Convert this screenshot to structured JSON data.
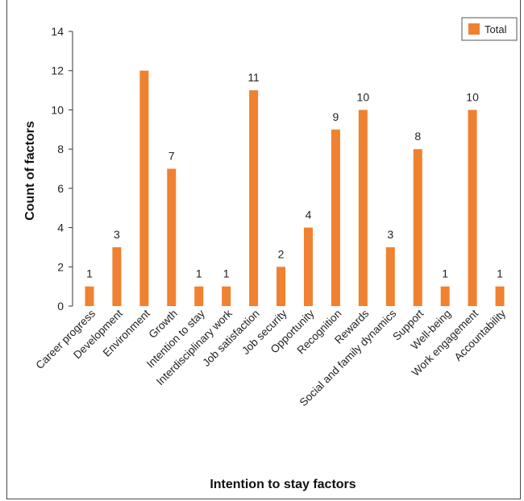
{
  "chart_data": {
    "type": "bar",
    "categories": [
      "Career progress",
      "Development",
      "Environment",
      "Growth",
      "Intention to stay",
      "Interdisciplinary work",
      "Job satisfaction",
      "Job security",
      "Opportunity",
      "Recognition",
      "Rewards",
      "Social and family dynamics",
      "Support",
      "Well-being",
      "Work engagement",
      "Accountability"
    ],
    "series": [
      {
        "name": "Total",
        "values": [
          1,
          3,
          12,
          7,
          1,
          1,
          11,
          2,
          4,
          9,
          10,
          3,
          8,
          1,
          10,
          1
        ]
      }
    ],
    "data_labels": [
      "1",
      "3",
      "",
      "7",
      "1",
      "1",
      "11",
      "2",
      "4",
      "9",
      "10",
      "3",
      "8",
      "1",
      "10",
      "1"
    ],
    "xlabel": "Intention to stay factors",
    "ylabel": "Count of factors",
    "ylim": [
      0,
      14
    ],
    "yticks": [
      0,
      2,
      4,
      6,
      8,
      10,
      12,
      14
    ],
    "grid": false,
    "legend_position": "top-right",
    "bar_color": "#F08130"
  }
}
